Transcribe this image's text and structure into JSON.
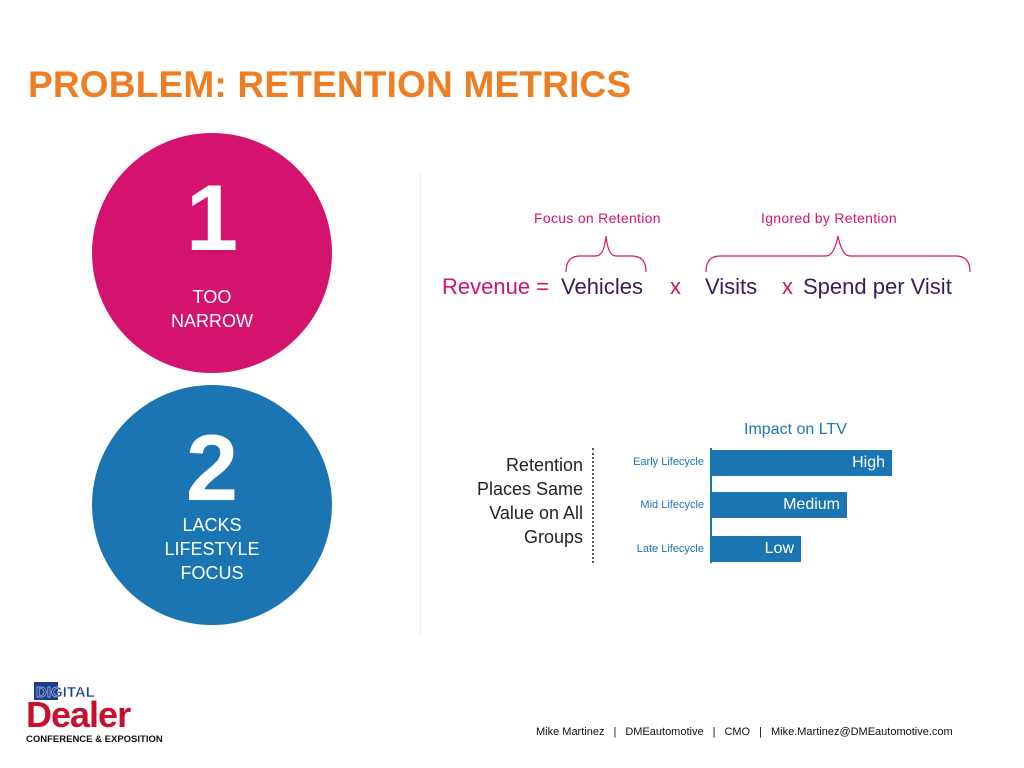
{
  "title": "PROBLEM: RETENTION METRICS",
  "points": [
    {
      "number": "1",
      "lines": [
        "TOO",
        "NARROW"
      ]
    },
    {
      "number": "2",
      "lines": [
        "LACKS",
        "LIFESTYLE",
        "FOCUS"
      ]
    }
  ],
  "equation": {
    "focus_label": "Focus on Retention",
    "ignored_label": "Ignored by Retention",
    "revenue": "Revenue =",
    "vehicles": "Vehicles",
    "times1": "x",
    "visits": "Visits",
    "times2": "x",
    "spend": "Spend per Visit"
  },
  "impact": {
    "description_lines": [
      "Retention",
      "Places Same",
      "Value on All",
      "Groups"
    ],
    "title": "Impact on LTV",
    "rows": [
      {
        "label": "Early Lifecycle",
        "value": "High",
        "level": 1.0
      },
      {
        "label": "Mid Lifecycle",
        "value": "Medium",
        "level": 0.75
      },
      {
        "label": "Late Lifecycle",
        "value": "Low",
        "level": 0.5
      }
    ]
  },
  "logo": {
    "top": "DIGITAL",
    "main": "Dealer",
    "sub": "CONFERENCE & EXPOSITION"
  },
  "footer": [
    "Mike Martinez",
    "DMEautomotive",
    "CMO",
    "Mike.Martinez@DMEautomotive.com"
  ],
  "colors": {
    "title": "#ee7d23",
    "pink": "#d4136f",
    "blue": "#1b75b2",
    "logo_red": "#c8102e",
    "logo_blue": "#1b3f8f"
  }
}
